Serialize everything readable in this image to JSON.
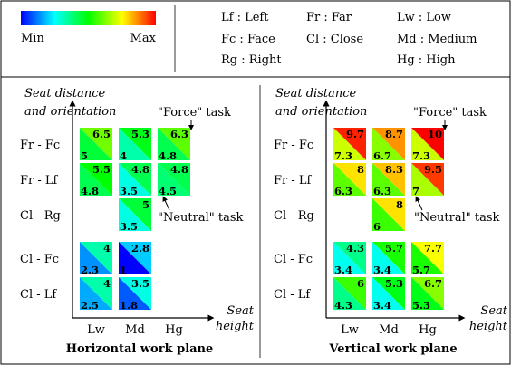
{
  "legend": {
    "min_label": "Min",
    "max_label": "Max",
    "scale_colors": [
      "#0000ff",
      "#00ffff",
      "#00ff00",
      "#ffff00",
      "#ff0000"
    ],
    "abbreviations": [
      "Lf : Left",
      "Fc : Face",
      "Rg : Right",
      "Fr : Far",
      "Cl : Close",
      "Lw : Low",
      "Md : Medium",
      "Hg : High"
    ]
  },
  "panels": [
    {
      "title": "Horizontal work plane",
      "y_axis_label": [
        "Seat distance",
        "and orientation"
      ],
      "x_axis_label": [
        "Seat",
        "height"
      ],
      "rows": [
        "Fr - Fc",
        "Fr - Lf",
        "Cl - Rg",
        "Cl - Fc",
        "Cl - Lf"
      ],
      "cols": [
        "Lw",
        "Md",
        "Hg"
      ],
      "force_task_label": "\"Force\" task",
      "neutral_task_label": "\"Neutral\" task",
      "value_range": [
        1,
        10
      ],
      "cells": [
        {
          "row": 0,
          "col": 0,
          "force": 6.5,
          "neutral": 5
        },
        {
          "row": 0,
          "col": 1,
          "force": 5.3,
          "neutral": 4
        },
        {
          "row": 0,
          "col": 2,
          "force": 6.3,
          "neutral": 4.8
        },
        {
          "row": 1,
          "col": 0,
          "force": 5.5,
          "neutral": 4.8
        },
        {
          "row": 1,
          "col": 1,
          "force": 4.8,
          "neutral": 3.5
        },
        {
          "row": 1,
          "col": 2,
          "force": 4.8,
          "neutral": 4.5
        },
        {
          "row": 2,
          "col": 1,
          "force": 5,
          "neutral": 3.5
        },
        {
          "row": 3,
          "col": 0,
          "force": 4,
          "neutral": 2.3
        },
        {
          "row": 3,
          "col": 1,
          "force": 2.8,
          "neutral": 1
        },
        {
          "row": 4,
          "col": 0,
          "force": 4,
          "neutral": 2.5
        },
        {
          "row": 4,
          "col": 1,
          "force": 3.5,
          "neutral": 1.8
        }
      ]
    },
    {
      "title": "Vertical work plane",
      "y_axis_label": [
        "Seat distance",
        "and orientation"
      ],
      "x_axis_label": [
        "Seat",
        "height"
      ],
      "rows": [
        "Fr - Fc",
        "Fr - Lf",
        "Cl - Rg",
        "Cl - Fc",
        "Cl - Lf"
      ],
      "cols": [
        "Lw",
        "Md",
        "Hg"
      ],
      "force_task_label": "\"Force\" task",
      "neutral_task_label": "\"Neutral\" task",
      "value_range": [
        1,
        10
      ],
      "cells": [
        {
          "row": 0,
          "col": 0,
          "force": 9.7,
          "neutral": 7.3
        },
        {
          "row": 0,
          "col": 1,
          "force": 8.7,
          "neutral": 6.7
        },
        {
          "row": 0,
          "col": 2,
          "force": 10,
          "neutral": 7.3
        },
        {
          "row": 1,
          "col": 0,
          "force": 8,
          "neutral": 6.3
        },
        {
          "row": 1,
          "col": 1,
          "force": 8.3,
          "neutral": 6.3
        },
        {
          "row": 1,
          "col": 2,
          "force": 9.5,
          "neutral": 7
        },
        {
          "row": 2,
          "col": 1,
          "force": 8,
          "neutral": 6
        },
        {
          "row": 3,
          "col": 0,
          "force": 4.3,
          "neutral": 3.4
        },
        {
          "row": 3,
          "col": 1,
          "force": 5.7,
          "neutral": 3.4
        },
        {
          "row": 3,
          "col": 2,
          "force": 7.7,
          "neutral": 5.7
        },
        {
          "row": 4,
          "col": 0,
          "force": 6,
          "neutral": 4.3
        },
        {
          "row": 4,
          "col": 1,
          "force": 5.3,
          "neutral": 3.4
        },
        {
          "row": 4,
          "col": 2,
          "force": 6.7,
          "neutral": 5.3
        }
      ]
    }
  ]
}
